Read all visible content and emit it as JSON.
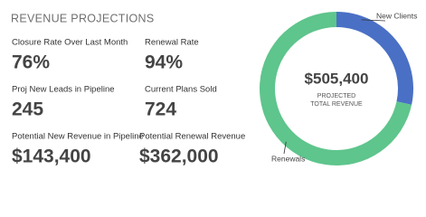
{
  "header": {
    "title": "REVENUE PROJECTIONS"
  },
  "metrics": [
    {
      "label": "Closure Rate Over Last Month",
      "value": "76%"
    },
    {
      "label": "Renewal Rate",
      "value": "94%"
    },
    {
      "label": "Proj New Leads in Pipeline",
      "value": "245"
    },
    {
      "label": "Current Plans Sold",
      "value": "724"
    },
    {
      "label": "Potential New Revenue in Pipeline",
      "value": "$143,400"
    },
    {
      "label": "Potential Renewal Revenue",
      "value": "$362,000"
    }
  ],
  "chart_data": {
    "type": "donut",
    "categories": [
      "New Clients",
      "Renewals"
    ],
    "values": [
      143400,
      362000
    ],
    "colors": [
      "#4a70c5",
      "#5ec58c"
    ],
    "center_value": "$505,400",
    "center_label": [
      "PROJECTED",
      "TOTAL REVENUE"
    ]
  }
}
